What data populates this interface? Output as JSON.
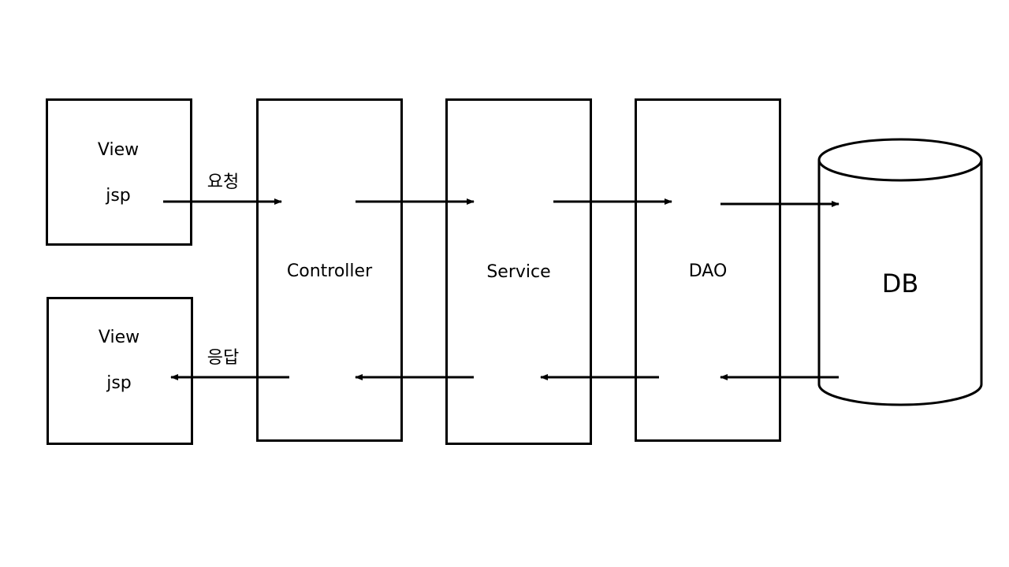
{
  "view_request": {
    "line1": "View",
    "line2": "jsp"
  },
  "view_response": {
    "line1": "View",
    "line2": "jsp"
  },
  "controller": {
    "label": "Controller"
  },
  "service": {
    "label": "Service"
  },
  "dao": {
    "label": "DAO"
  },
  "db": {
    "label": "DB"
  },
  "flow": {
    "request_label": "요청",
    "response_label": "응답"
  },
  "colors": {
    "stroke": "#000000",
    "background": "#ffffff"
  }
}
